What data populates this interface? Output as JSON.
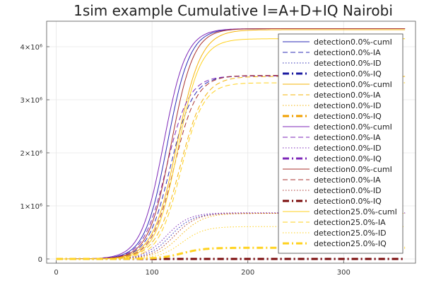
{
  "chart_data": {
    "type": "line",
    "title": "1sim example Cumulative I=A+D+IQ Nairobi",
    "xlabel": "",
    "ylabel": "",
    "xlim": [
      -10,
      375
    ],
    "ylim": [
      -80000,
      4480000
    ],
    "x_ticks": [
      0,
      100,
      200,
      300
    ],
    "x_tick_labels": [
      "0",
      "100",
      "200",
      "300"
    ],
    "y_ticks": [
      0,
      1000000,
      2000000,
      3000000,
      4000000
    ],
    "y_tick_labels": [
      "0",
      "1×10⁶",
      "2×10⁶",
      "3×10⁶",
      "4×10⁶"
    ],
    "grid": true,
    "legend_position": "right",
    "series": [
      {
        "name": "detection0.0%-cumI",
        "color": "#2b2bb5",
        "dash": "solid",
        "width": 1,
        "kind": "cumI",
        "final": 4340000,
        "midpoint": 116,
        "rate": 0.085
      },
      {
        "name": "detection0.0%-IA",
        "color": "#2b2bb5",
        "dash": "dash",
        "width": 1,
        "kind": "IA",
        "final": 3450000,
        "midpoint": 119,
        "rate": 0.085
      },
      {
        "name": "detection0.0%-ID",
        "color": "#2b2bb5",
        "dash": "dot",
        "width": 1,
        "kind": "ID",
        "final": 860000,
        "midpoint": 119,
        "rate": 0.085
      },
      {
        "name": "detection0.0%-IQ",
        "color": "#1a1aa0",
        "dash": "dashdot",
        "width": 3,
        "kind": "IQ",
        "final": 0,
        "midpoint": 130,
        "rate": 0.08
      },
      {
        "name": "detection0.0%-cumI",
        "color": "#f5b40a",
        "dash": "solid",
        "width": 1,
        "kind": "cumI",
        "final": 4320000,
        "midpoint": 126,
        "rate": 0.08
      },
      {
        "name": "detection0.0%-IA",
        "color": "#f5b40a",
        "dash": "dash",
        "width": 1,
        "kind": "IA",
        "final": 3440000,
        "midpoint": 129,
        "rate": 0.08
      },
      {
        "name": "detection0.0%-ID",
        "color": "#f5b40a",
        "dash": "dot",
        "width": 1,
        "kind": "ID",
        "final": 860000,
        "midpoint": 129,
        "rate": 0.08
      },
      {
        "name": "detection0.0%-IQ",
        "color": "#f0a000",
        "dash": "dashdot",
        "width": 3,
        "kind": "IQ",
        "final": 0,
        "midpoint": 130,
        "rate": 0.08
      },
      {
        "name": "detection0.0%-cumI",
        "color": "#7d27b8",
        "dash": "solid",
        "width": 1,
        "kind": "cumI",
        "final": 4340000,
        "midpoint": 112,
        "rate": 0.085
      },
      {
        "name": "detection0.0%-IA",
        "color": "#7d27b8",
        "dash": "dash",
        "width": 1,
        "kind": "IA",
        "final": 3450000,
        "midpoint": 115,
        "rate": 0.085
      },
      {
        "name": "detection0.0%-ID",
        "color": "#7d27b8",
        "dash": "dot",
        "width": 1,
        "kind": "ID",
        "final": 870000,
        "midpoint": 115,
        "rate": 0.085
      },
      {
        "name": "detection0.0%-IQ",
        "color": "#7d27b8",
        "dash": "dashdot",
        "width": 3,
        "kind": "IQ",
        "final": 0,
        "midpoint": 130,
        "rate": 0.08
      },
      {
        "name": "detection0.0%-cumI",
        "color": "#a8322d",
        "dash": "solid",
        "width": 1,
        "kind": "cumI",
        "final": 4340000,
        "midpoint": 120,
        "rate": 0.085
      },
      {
        "name": "detection0.0%-IA",
        "color": "#a8322d",
        "dash": "dash",
        "width": 1,
        "kind": "IA",
        "final": 3460000,
        "midpoint": 123,
        "rate": 0.085
      },
      {
        "name": "detection0.0%-ID",
        "color": "#a8322d",
        "dash": "dot",
        "width": 1,
        "kind": "ID",
        "final": 860000,
        "midpoint": 123,
        "rate": 0.085
      },
      {
        "name": "detection0.0%-IQ",
        "color": "#7a0a0a",
        "dash": "dashdot",
        "width": 3,
        "kind": "IQ",
        "final": 0,
        "midpoint": 130,
        "rate": 0.08
      },
      {
        "name": "detection25.0%-cumI",
        "color": "#ffd21f",
        "dash": "solid",
        "width": 1,
        "kind": "cumI",
        "final": 4150000,
        "midpoint": 127,
        "rate": 0.085
      },
      {
        "name": "detection25.0%-IA",
        "color": "#ffd21f",
        "dash": "dash",
        "width": 1,
        "kind": "IA",
        "final": 3320000,
        "midpoint": 130,
        "rate": 0.085
      },
      {
        "name": "detection25.0%-ID",
        "color": "#ffd21f",
        "dash": "dot",
        "width": 1,
        "kind": "ID",
        "final": 610000,
        "midpoint": 131,
        "rate": 0.085
      },
      {
        "name": "detection25.0%-IQ",
        "color": "#ffd21f",
        "dash": "dashdot",
        "width": 3,
        "kind": "IQ",
        "final": 210000,
        "midpoint": 131,
        "rate": 0.085
      }
    ]
  }
}
